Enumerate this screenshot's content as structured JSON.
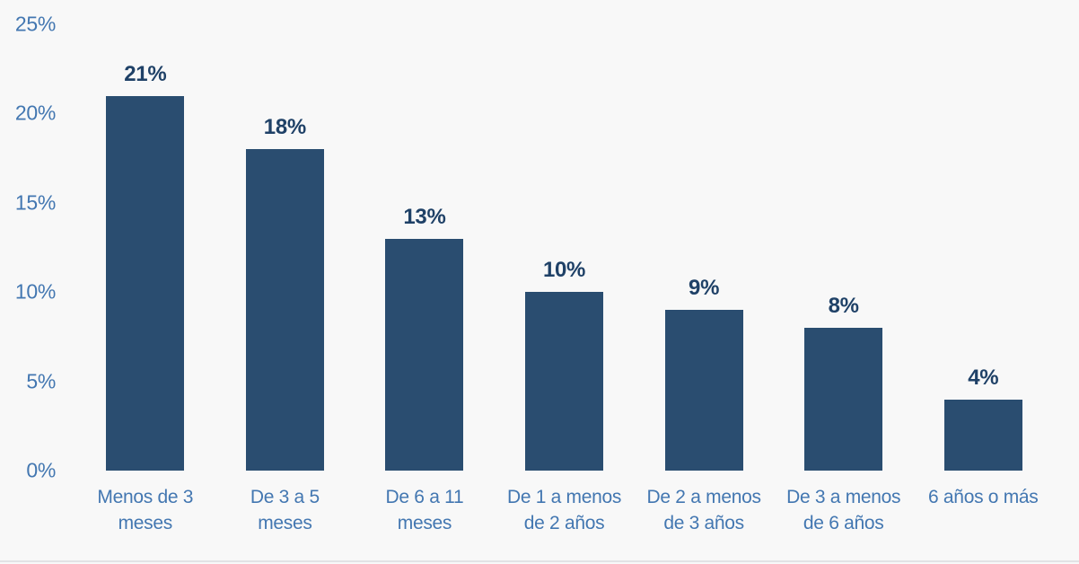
{
  "chart_data": {
    "type": "bar",
    "title": "",
    "xlabel": "",
    "ylabel": "",
    "categories": [
      "Menos de 3\nmeses",
      "De 3 a 5\nmeses",
      "De 6 a 11\nmeses",
      "De 1 a menos\nde 2 años",
      "De 2 a menos\nde 3 años",
      "De 3 a menos\nde 6 años",
      "6 años o más"
    ],
    "values": [
      21,
      18,
      13,
      10,
      9,
      8,
      4
    ],
    "value_labels": [
      "21%",
      "18%",
      "13%",
      "10%",
      "9%",
      "8%",
      "4%"
    ],
    "y_ticks": [
      0,
      5,
      10,
      15,
      20,
      25
    ],
    "y_tick_labels": [
      "0%",
      "5%",
      "10%",
      "15%",
      "20%",
      "25%"
    ],
    "ylim": [
      0,
      25
    ],
    "grid": false,
    "legend": "none",
    "colors": {
      "bar": "#2a4d70",
      "value_label": "#1f4167",
      "axis_text": "#4377b1",
      "background": "#f8f8f8",
      "divider": "#e2e2e5"
    }
  }
}
